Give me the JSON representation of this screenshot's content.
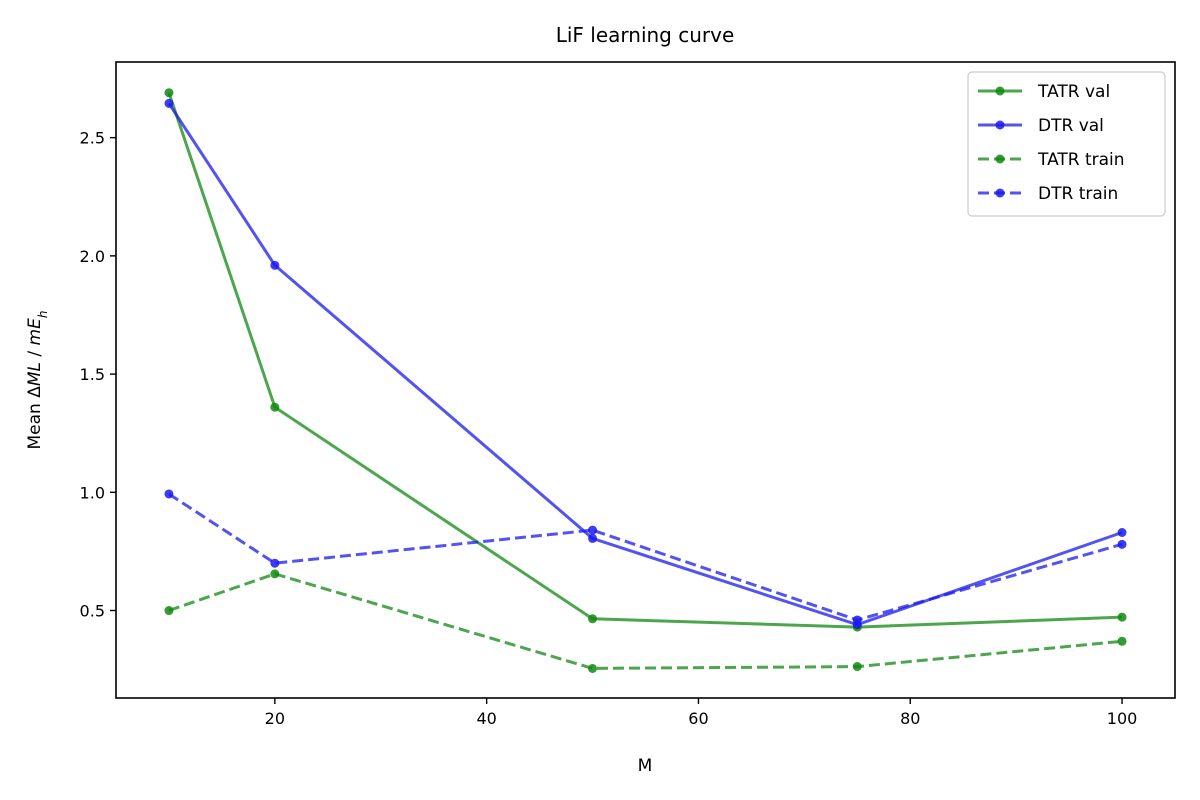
{
  "chart_data": {
    "type": "line",
    "title": "LiF learning curve",
    "xlabel": "M",
    "ylabel": "Mean ΔML / mE_h",
    "xlim": [
      5,
      105
    ],
    "ylim": [
      0.13,
      2.82
    ],
    "xticks": [
      20,
      40,
      60,
      80,
      100
    ],
    "yticks": [
      0.5,
      1.0,
      1.5,
      2.0,
      2.5
    ],
    "grid": false,
    "legend_position": "top-right",
    "x": [
      10,
      20,
      50,
      75,
      100
    ],
    "series": [
      {
        "name": "TATR val",
        "values": [
          2.69,
          1.36,
          0.465,
          0.43,
          0.472
        ],
        "color": "#118811",
        "dash": "solid"
      },
      {
        "name": "DTR val",
        "values": [
          2.645,
          1.96,
          0.805,
          0.44,
          0.83
        ],
        "color": "#1a1aee",
        "dash": "solid"
      },
      {
        "name": "TATR train",
        "values": [
          0.5,
          0.655,
          0.255,
          0.263,
          0.37
        ],
        "color": "#118811",
        "dash": "dashed"
      },
      {
        "name": "DTR train",
        "values": [
          0.993,
          0.7,
          0.84,
          0.46,
          0.78
        ],
        "color": "#1a1aee",
        "dash": "dashed"
      }
    ]
  }
}
